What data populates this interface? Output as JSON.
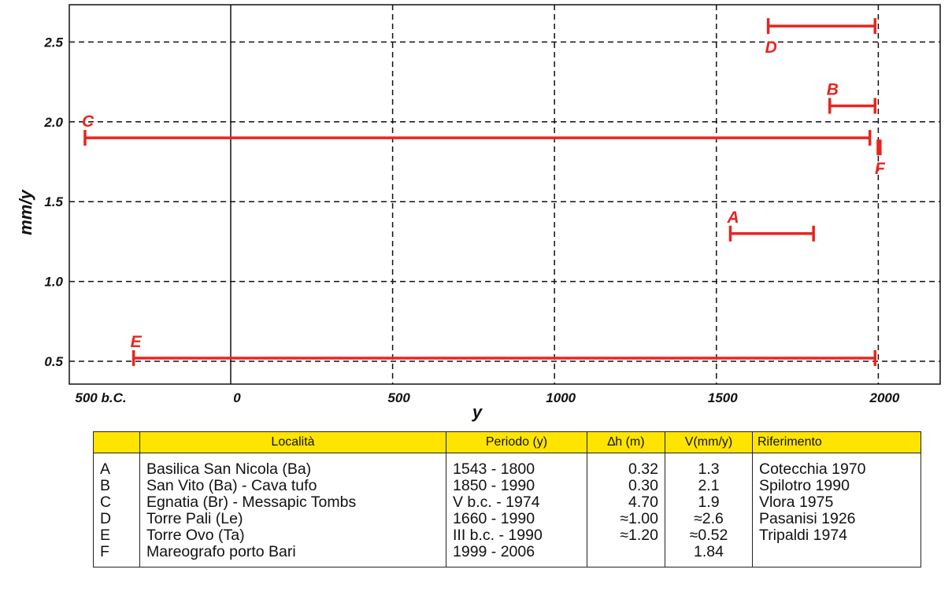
{
  "chart_data": {
    "type": "range-bar",
    "xlabel": "y",
    "ylabel": "mm/y",
    "xlim": [
      -500,
      2200
    ],
    "ylim": [
      0.3,
      2.75
    ],
    "x_ticks": [
      {
        "value": -500,
        "label": "500 b.C."
      },
      {
        "value": 0,
        "label": "0"
      },
      {
        "value": 500,
        "label": "500"
      },
      {
        "value": 1000,
        "label": "1000"
      },
      {
        "value": 1500,
        "label": "1500"
      },
      {
        "value": 2000,
        "label": "2000"
      }
    ],
    "y_ticks": [
      {
        "value": 0.5,
        "label": "0.5"
      },
      {
        "value": 1.0,
        "label": "1.0"
      },
      {
        "value": 1.5,
        "label": "1.5"
      },
      {
        "value": 2.0,
        "label": "2.0"
      },
      {
        "value": 2.5,
        "label": "2.5"
      }
    ],
    "grid": true,
    "color": "#e8251f",
    "ranges": [
      {
        "label": "A",
        "x_start": 1543,
        "x_end": 1800,
        "y": 1.3,
        "label_pos": "above-left"
      },
      {
        "label": "B",
        "x_start": 1850,
        "x_end": 1990,
        "y": 2.1,
        "label_pos": "above-left"
      },
      {
        "label": "C",
        "x_start": -450,
        "x_end": 1974,
        "y": 1.9,
        "label_pos": "above-left"
      },
      {
        "label": "D",
        "x_start": 1660,
        "x_end": 1990,
        "y": 2.6,
        "label_pos": "below-left"
      },
      {
        "label": "E",
        "x_start": -300,
        "x_end": 1990,
        "y": 0.52,
        "label_pos": "above-left"
      },
      {
        "label": "F",
        "x_start": 1999,
        "x_end": 2006,
        "y": 1.84,
        "label_pos": "below-left"
      }
    ]
  },
  "table": {
    "headers": {
      "id": "",
      "location": "Località",
      "period": "Periodo (y)",
      "dh": "∆h (m)",
      "v": "V(mm/y)",
      "reference": "Riferimento"
    },
    "rows": [
      {
        "id": "A",
        "location": "Basilica San Nicola (Ba)",
        "period": "1543 - 1800",
        "dh": "0.32",
        "v": "1.3",
        "reference": "Cotecchia 1970"
      },
      {
        "id": "B",
        "location": "San Vito (Ba) - Cava tufo",
        "period": "1850 - 1990",
        "dh": "0.30",
        "v": "2.1",
        "reference": "Spilotro 1990"
      },
      {
        "id": "C",
        "location": "Egnatia (Br) - Messapic Tombs",
        "period": "V b.c. - 1974",
        "dh": "4.70",
        "v": "1.9",
        "reference": "Vlora 1975"
      },
      {
        "id": "D",
        "location": "Torre Pali (Le)",
        "period": "1660 - 1990",
        "dh": "≈1.00",
        "v": "≈2.6",
        "reference": "Pasanisi 1926"
      },
      {
        "id": "E",
        "location": "Torre Ovo (Ta)",
        "period": "III b.c. - 1990",
        "dh": "≈1.20",
        "v": "≈0.52",
        "reference": "Tripaldi 1974"
      },
      {
        "id": "F",
        "location": "Mareografo porto Bari",
        "period": "1999 - 2006",
        "dh": "",
        "v": "1.84",
        "reference": ""
      }
    ]
  }
}
